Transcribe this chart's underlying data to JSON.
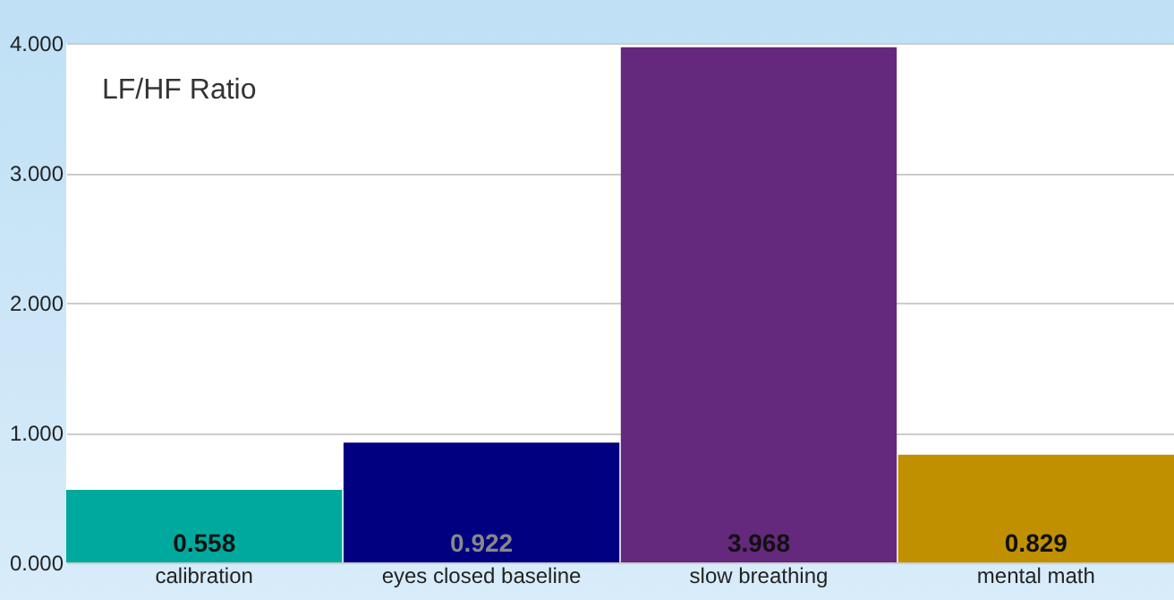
{
  "chart_data": {
    "type": "bar",
    "title": "LF/HF Ratio",
    "categories": [
      "calibration",
      "eyes closed baseline",
      "slow breathing",
      "mental math"
    ],
    "values": [
      0.558,
      0.922,
      3.968,
      0.829
    ],
    "colors": [
      "#00a99d",
      "#000080",
      "#64287c",
      "#c09000"
    ],
    "ylim": [
      0,
      4
    ],
    "yticks": [
      {
        "value": 0,
        "label": "0.000"
      },
      {
        "value": 1,
        "label": "1.000"
      },
      {
        "value": 2,
        "label": "2.000"
      },
      {
        "value": 3,
        "label": "3.000"
      },
      {
        "value": 4,
        "label": "4.000"
      }
    ],
    "grid": "y",
    "data_labels": true
  }
}
